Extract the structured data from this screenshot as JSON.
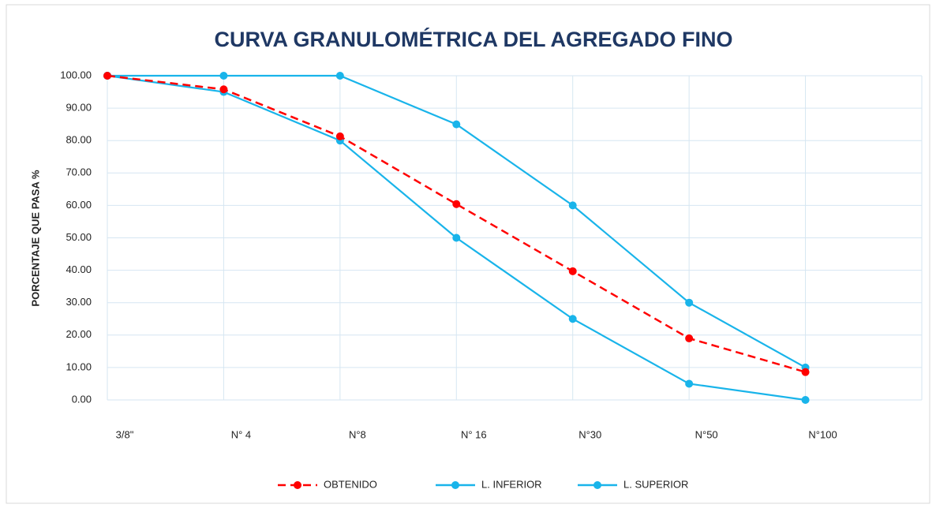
{
  "chart_data": {
    "type": "line",
    "title": "CURVA GRANULOMÉTRICA DEL AGREGADO FINO",
    "y_label": "PORCENTAJE  QUE PASA %",
    "categories": [
      "3/8\"",
      "N° 4",
      "N°8",
      "N° 16",
      "N°30",
      "N°50",
      "N°100",
      null
    ],
    "series": [
      {
        "name": "OBTENIDO",
        "color": "#ff0000",
        "dashed": true,
        "values": [
          100,
          95.8,
          81.3,
          60.4,
          39.7,
          19.0,
          8.6,
          null
        ]
      },
      {
        "name": "L. INFERIOR",
        "color": "#19b4ea",
        "dashed": false,
        "values": [
          100,
          95,
          80,
          50,
          25,
          5,
          0,
          null
        ]
      },
      {
        "name": "L. SUPERIOR",
        "color": "#19b4ea",
        "dashed": false,
        "values": [
          100,
          100,
          100,
          85,
          60,
          30,
          10,
          null
        ]
      }
    ],
    "ylim": [
      0,
      100
    ],
    "yticks": [
      {
        "value": 0,
        "label": "0.00"
      },
      {
        "value": 10,
        "label": "10.00"
      },
      {
        "value": 20,
        "label": "20.00"
      },
      {
        "value": 30,
        "label": "30.00"
      },
      {
        "value": 40,
        "label": "40.00"
      },
      {
        "value": 50,
        "label": "50.00"
      },
      {
        "value": 60,
        "label": "60.00"
      },
      {
        "value": 70,
        "label": "70.00"
      },
      {
        "value": 80,
        "label": "80.00"
      },
      {
        "value": 90,
        "label": "90.00"
      },
      {
        "value": 100,
        "label": "100.00"
      }
    ],
    "grid": true,
    "legend": "bottom"
  }
}
